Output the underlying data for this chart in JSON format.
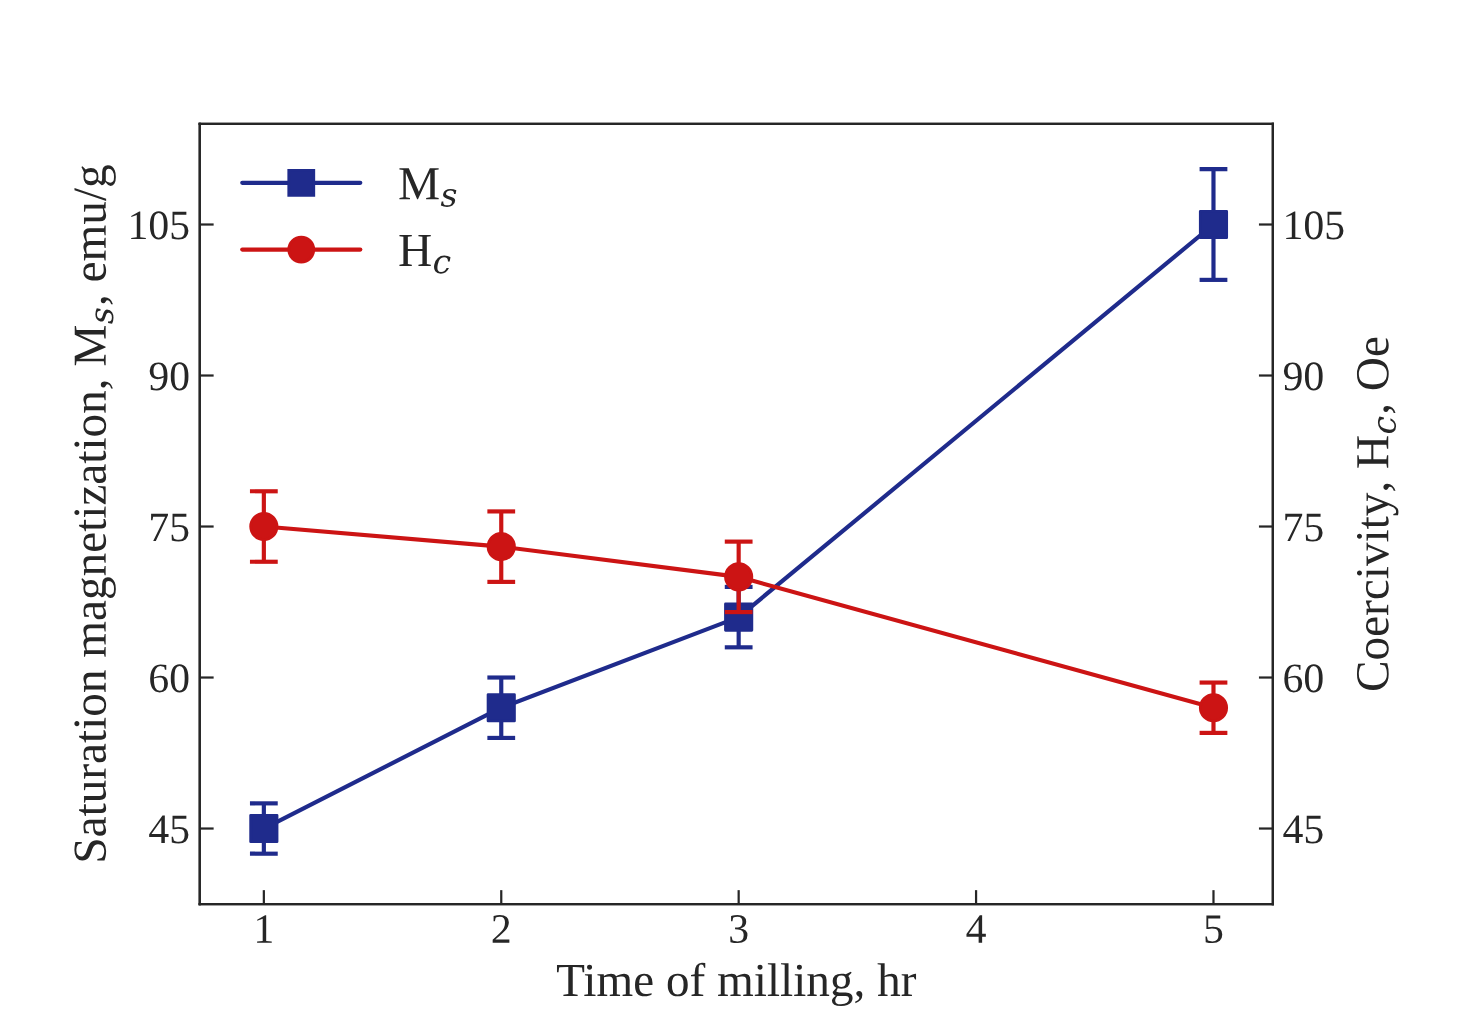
{
  "chart_data": {
    "type": "line",
    "xlabel": "Time of milling, hr",
    "ylabel": "Saturation magnetization, M$_{s}$, emu/g",
    "y2label": "Coercivity, H$_{c}$, Oe",
    "x": [
      1,
      2,
      3,
      5
    ],
    "series": [
      {
        "name": "M$_{s}$",
        "color": "#1f2b8c",
        "marker": "square",
        "values": [
          45,
          57,
          66,
          105
        ],
        "errors": [
          2.5,
          3,
          3,
          5.5
        ]
      },
      {
        "name": "H$_{c}$",
        "color": "#cc1414",
        "marker": "circle",
        "axis": "y2",
        "values": [
          75,
          73,
          70,
          57
        ],
        "errors": [
          3.5,
          3.5,
          3.5,
          2.5
        ]
      }
    ],
    "xlim": [
      0.73,
      5.25
    ],
    "xticks": [
      1,
      2,
      3,
      4,
      5
    ],
    "ylim": [
      37.5,
      115
    ],
    "yticks": [
      45,
      60,
      75,
      90,
      105
    ],
    "y2lim": [
      37.5,
      115
    ],
    "y2ticks": [
      45,
      60,
      75,
      90,
      105
    ],
    "legend": "top left",
    "grid": false,
    "line_style": "solid"
  }
}
